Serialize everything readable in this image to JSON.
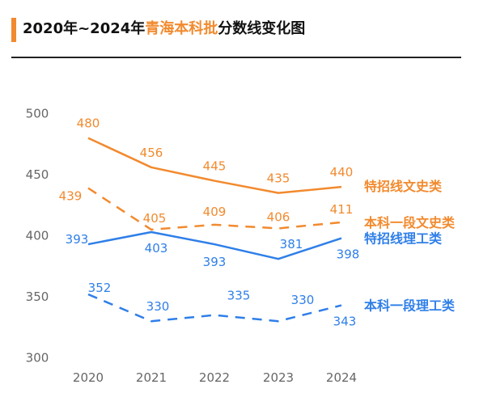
{
  "title": {
    "part1": "2020年~2024年",
    "highlight": "青海本科批",
    "part2": "分数线变化图"
  },
  "colors": {
    "orange": "#f28a2e",
    "blue": "#2f7fe8",
    "axis_text": "#666666"
  },
  "chart_data": {
    "type": "line",
    "x": [
      "2020",
      "2021",
      "2022",
      "2023",
      "2024"
    ],
    "ylim": [
      300,
      500
    ],
    "yticks": [
      300,
      350,
      400,
      450,
      500
    ],
    "grid": false,
    "legend": "labels at right end of each line",
    "series": [
      {
        "name": "特招线文史类",
        "values": [
          480,
          456,
          445,
          435,
          440
        ],
        "color": "#f28a2e",
        "dashed": false
      },
      {
        "name": "本科一段文史类",
        "values": [
          439,
          405,
          409,
          406,
          411
        ],
        "color": "#f28a2e",
        "dashed": true
      },
      {
        "name": "特招线理工类",
        "values": [
          393,
          403,
          393,
          381,
          398
        ],
        "color": "#2f7fe8",
        "dashed": false
      },
      {
        "name": "本科一段理工类",
        "values": [
          352,
          330,
          335,
          330,
          343
        ],
        "color": "#2f7fe8",
        "dashed": true
      }
    ]
  }
}
